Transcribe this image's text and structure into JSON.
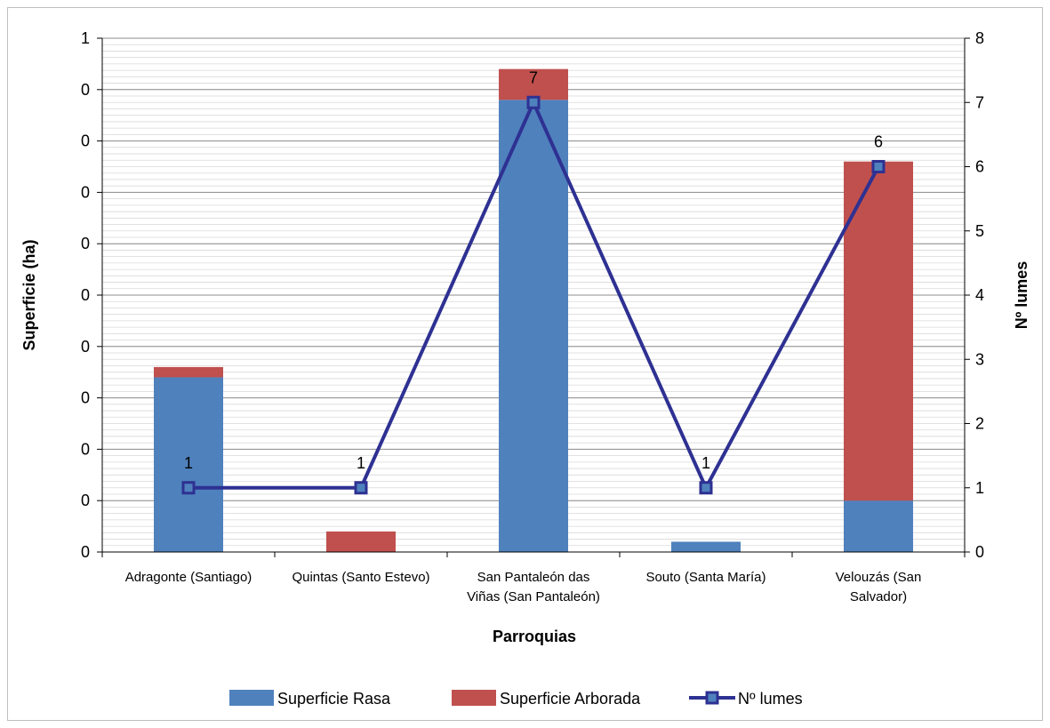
{
  "chart_data": {
    "type": "bar",
    "stacked": true,
    "categories": [
      [
        "Adragonte (Santiago)"
      ],
      [
        "Quintas (Santo Estevo)"
      ],
      [
        "San Pantaleón das",
        "Viñas (San Pantaleón)"
      ],
      [
        "Souto (Santa María)"
      ],
      [
        "Velouzás (San",
        "Salvador)"
      ]
    ],
    "series": [
      {
        "name": "Superficie Rasa",
        "axis": "left",
        "kind": "bar",
        "color": "#4F81BD",
        "values": [
          0.34,
          0,
          0.88,
          0.02,
          0.1
        ]
      },
      {
        "name": "Superficie Arborada",
        "axis": "left",
        "kind": "bar",
        "color": "#C0504D",
        "values": [
          0.02,
          0.04,
          0.06,
          0,
          0.66
        ]
      },
      {
        "name": "Nº lumes",
        "axis": "right",
        "kind": "line",
        "color": "#2E3192",
        "values": [
          1,
          1,
          7,
          1,
          6
        ],
        "data_labels": [
          "1",
          "1",
          "7",
          "1",
          "6"
        ]
      }
    ],
    "xlabel": "Parroquias",
    "ylabel": "Superficie (ha)",
    "y2label": "Nº lumes",
    "ylim": [
      0,
      1
    ],
    "y2lim": [
      0,
      8
    ],
    "y_tick_labels": [
      "0",
      "0",
      "0",
      "0",
      "0",
      "0",
      "0",
      "0",
      "0",
      "0",
      "1"
    ],
    "y2_tick_labels": [
      "0",
      "1",
      "2",
      "3",
      "4",
      "5",
      "6",
      "7",
      "8"
    ],
    "grid": true,
    "legend_position": "bottom"
  }
}
